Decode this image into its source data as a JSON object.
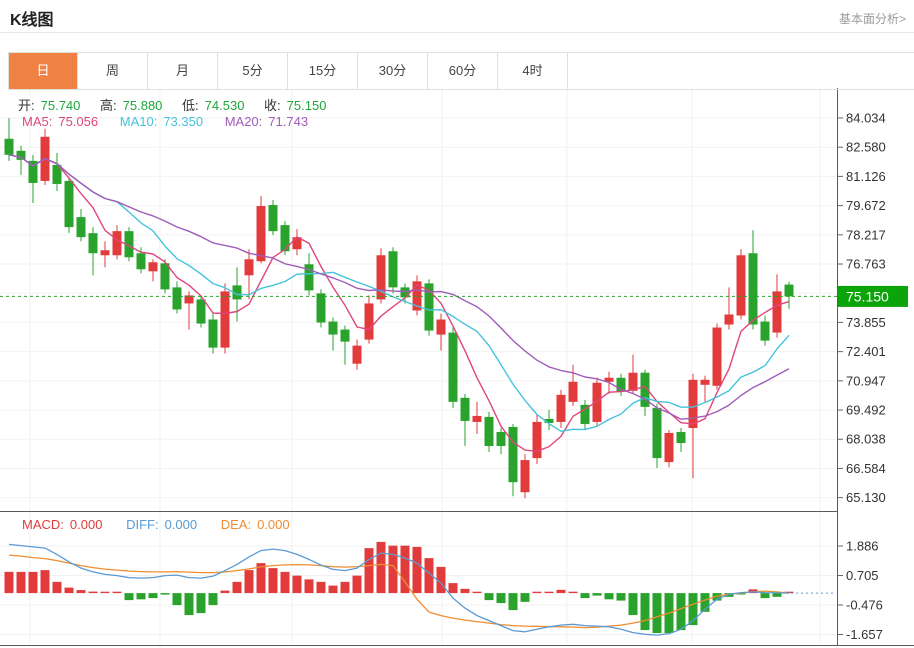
{
  "header": {
    "title": "K线图",
    "link_label": "基本面分析>"
  },
  "tabs": {
    "items": [
      "日",
      "周",
      "月",
      "5分",
      "15分",
      "30分",
      "60分",
      "4时"
    ],
    "active_index": 0
  },
  "info_bar": {
    "open_label": "开:",
    "open": "75.740",
    "high_label": "高:",
    "high": "75.880",
    "low_label": "低:",
    "low": "74.530",
    "close_label": "收:",
    "close": "75.150"
  },
  "ma_bar": {
    "ma5_label": "MA5:",
    "ma5": "75.056",
    "ma10_label": "MA10:",
    "ma10": "73.350",
    "ma20_label": "MA20:",
    "ma20": "71.743"
  },
  "macd_bar": {
    "macd_label": "MACD:",
    "macd": "0.000",
    "diff_label": "DIFF:",
    "diff": "0.000",
    "dea_label": "DEA:",
    "dea": "0.000"
  },
  "colors": {
    "red_up": "#e23b3c",
    "green_down": "#2aa32d",
    "badge_green": "#0ba50b",
    "ohlc_green": "#1fa63c",
    "ma5": "#e0457e",
    "ma10": "#45c3dc",
    "ma20": "#a05cb8",
    "diff": "#5a9bd4",
    "dea": "#f08c32",
    "tab_active": "#f08145",
    "price_line": "#2aa32d"
  },
  "chart_data": {
    "type": "candlestick+macd",
    "title": "K线图 daily candlestick with MACD",
    "legend": [
      "MA5",
      "MA10",
      "MA20",
      "MACD",
      "DIFF",
      "DEA"
    ],
    "grid": true,
    "current_price": 75.15,
    "current_price_label": "75.150",
    "price_axis_labels": [
      "84.034",
      "82.580",
      "81.126",
      "79.672",
      "78.217",
      "76.763",
      "73.855",
      "72.401",
      "70.947",
      "69.492",
      "68.038",
      "66.584",
      "65.130"
    ],
    "price_grid": [
      84.034,
      82.58,
      81.126,
      79.672,
      78.217,
      76.763,
      75.309,
      73.855,
      72.401,
      70.947,
      69.492,
      68.038,
      66.584,
      65.13
    ],
    "macd_axis_labels": [
      "1.886",
      "0.705",
      "-0.476",
      "-1.657"
    ],
    "macd_axis_ticks": [
      1.886,
      0.705,
      -0.476,
      -1.657
    ],
    "candles_format": "[open, high, low, close]",
    "candles": [
      [
        83.0,
        84.03,
        81.9,
        82.2
      ],
      [
        82.4,
        82.65,
        81.2,
        81.95
      ],
      [
        81.9,
        82.2,
        79.8,
        80.8
      ],
      [
        80.9,
        83.5,
        80.7,
        83.1
      ],
      [
        81.7,
        82.3,
        80.4,
        80.75
      ],
      [
        80.9,
        81.1,
        78.3,
        78.6
      ],
      [
        79.1,
        79.5,
        77.9,
        78.1
      ],
      [
        78.3,
        78.6,
        76.2,
        77.3
      ],
      [
        77.2,
        77.9,
        76.6,
        77.45
      ],
      [
        77.2,
        78.7,
        77.0,
        78.4
      ],
      [
        78.4,
        78.6,
        76.9,
        77.1
      ],
      [
        77.3,
        77.6,
        76.3,
        76.5
      ],
      [
        76.4,
        77.0,
        75.9,
        76.85
      ],
      [
        76.8,
        77.0,
        75.3,
        75.5
      ],
      [
        75.6,
        75.9,
        74.3,
        74.5
      ],
      [
        74.8,
        75.4,
        73.5,
        75.2
      ],
      [
        75.0,
        75.2,
        73.6,
        73.8
      ],
      [
        74.0,
        74.3,
        72.3,
        72.6
      ],
      [
        72.6,
        75.8,
        72.3,
        75.4
      ],
      [
        75.7,
        76.6,
        73.9,
        75.0
      ],
      [
        76.2,
        77.5,
        75.0,
        77.0
      ],
      [
        76.9,
        80.15,
        76.8,
        79.65
      ],
      [
        79.7,
        79.95,
        78.2,
        78.4
      ],
      [
        78.7,
        78.9,
        77.2,
        77.4
      ],
      [
        77.5,
        78.5,
        77.2,
        78.1
      ],
      [
        76.75,
        77.3,
        75.2,
        75.45
      ],
      [
        75.3,
        75.5,
        73.6,
        73.85
      ],
      [
        73.9,
        74.1,
        72.45,
        73.25
      ],
      [
        73.5,
        73.7,
        71.75,
        72.9
      ],
      [
        71.8,
        73.0,
        71.5,
        72.7
      ],
      [
        73.0,
        75.2,
        72.8,
        74.8
      ],
      [
        75.0,
        77.55,
        74.8,
        77.2
      ],
      [
        77.4,
        77.6,
        75.3,
        75.6
      ],
      [
        75.6,
        75.8,
        74.8,
        75.1
      ],
      [
        74.45,
        76.2,
        74.2,
        75.9
      ],
      [
        75.8,
        76.0,
        73.2,
        73.45
      ],
      [
        73.25,
        74.3,
        72.45,
        74.0
      ],
      [
        73.35,
        73.6,
        69.6,
        69.9
      ],
      [
        70.1,
        70.3,
        67.7,
        68.95
      ],
      [
        68.9,
        69.9,
        68.3,
        69.2
      ],
      [
        69.15,
        69.4,
        67.4,
        67.7
      ],
      [
        68.4,
        68.6,
        67.3,
        67.7
      ],
      [
        68.65,
        68.8,
        65.2,
        65.9
      ],
      [
        65.4,
        67.3,
        65.1,
        67.0
      ],
      [
        67.1,
        69.3,
        66.8,
        68.9
      ],
      [
        69.05,
        69.5,
        68.5,
        68.85
      ],
      [
        68.9,
        70.5,
        68.6,
        70.25
      ],
      [
        69.9,
        71.75,
        69.7,
        70.9
      ],
      [
        69.75,
        70.0,
        68.5,
        68.8
      ],
      [
        68.9,
        71.1,
        68.7,
        70.85
      ],
      [
        70.9,
        71.4,
        70.3,
        71.1
      ],
      [
        71.1,
        71.3,
        70.2,
        70.4
      ],
      [
        70.45,
        72.25,
        70.3,
        71.35
      ],
      [
        71.35,
        71.5,
        69.2,
        69.65
      ],
      [
        69.6,
        69.8,
        66.6,
        67.1
      ],
      [
        66.9,
        68.5,
        66.65,
        68.35
      ],
      [
        68.4,
        68.6,
        67.4,
        67.85
      ],
      [
        68.6,
        71.3,
        66.1,
        71.0
      ],
      [
        70.75,
        71.2,
        69.9,
        71.0
      ],
      [
        70.7,
        73.8,
        70.5,
        73.6
      ],
      [
        73.75,
        75.6,
        73.5,
        74.25
      ],
      [
        74.2,
        77.5,
        74.0,
        77.2
      ],
      [
        77.3,
        78.45,
        73.5,
        73.75
      ],
      [
        73.9,
        74.2,
        72.7,
        72.95
      ],
      [
        73.35,
        76.25,
        73.1,
        75.4
      ],
      [
        75.74,
        75.88,
        74.53,
        75.15
      ]
    ],
    "ma_periods": [
      5,
      10,
      20
    ],
    "macd": {
      "hist": [
        0.85,
        0.85,
        0.85,
        0.92,
        0.45,
        0.22,
        0.12,
        0.06,
        0.05,
        0.04,
        -0.28,
        -0.25,
        -0.2,
        -0.06,
        -0.48,
        -0.88,
        -0.8,
        -0.48,
        0.1,
        0.45,
        0.92,
        1.2,
        1.0,
        0.85,
        0.7,
        0.55,
        0.45,
        0.3,
        0.45,
        0.7,
        1.8,
        2.05,
        1.9,
        1.9,
        1.85,
        1.4,
        1.05,
        0.4,
        0.17,
        0.02,
        -0.28,
        -0.4,
        -0.68,
        -0.35,
        0.02,
        0.05,
        0.13,
        0.05,
        -0.2,
        -0.1,
        -0.25,
        -0.3,
        -0.88,
        -1.48,
        -1.6,
        -1.6,
        -1.48,
        -1.28,
        -0.75,
        -0.3,
        -0.15,
        -0.02,
        0.15,
        -0.2,
        -0.15,
        0.02
      ],
      "diff": [
        1.95,
        1.9,
        1.85,
        1.8,
        1.55,
        1.25,
        1.0,
        0.85,
        0.75,
        0.7,
        0.62,
        0.6,
        0.62,
        0.7,
        0.72,
        0.62,
        0.6,
        0.68,
        0.9,
        1.15,
        1.45,
        1.7,
        1.76,
        1.7,
        1.55,
        1.35,
        1.12,
        0.95,
        0.9,
        1.0,
        1.35,
        1.6,
        1.55,
        1.4,
        1.2,
        0.8,
        0.4,
        -0.2,
        -0.6,
        -0.9,
        -1.1,
        -1.3,
        -1.5,
        -1.55,
        -1.45,
        -1.35,
        -1.28,
        -1.25,
        -1.3,
        -1.32,
        -1.35,
        -1.45,
        -1.58,
        -1.65,
        -1.68,
        -1.62,
        -1.45,
        -1.1,
        -0.65,
        -0.25,
        -0.05,
        0.02,
        0.05,
        0.02,
        0.01,
        0.0
      ],
      "dea": [
        1.52,
        1.48,
        1.42,
        1.38,
        1.3,
        1.2,
        1.1,
        1.02,
        0.96,
        0.92,
        0.88,
        0.86,
        0.85,
        0.85,
        0.86,
        0.84,
        0.82,
        0.82,
        0.85,
        0.9,
        0.97,
        1.05,
        1.1,
        1.13,
        1.14,
        1.13,
        1.1,
        1.06,
        1.04,
        1.06,
        1.1,
        1.15,
        1.1,
        0.45,
        -0.25,
        -0.76,
        -0.9,
        -1.0,
        -1.08,
        -1.14,
        -1.2,
        -1.26,
        -1.3,
        -1.32,
        -1.33,
        -1.34,
        -1.35,
        -1.36,
        -1.38,
        -1.36,
        -1.32,
        -1.28,
        -1.2,
        -1.1,
        -0.95,
        -0.8,
        -0.62,
        -0.45,
        -0.28,
        -0.12,
        -0.04,
        0.0,
        0.05,
        0.08,
        0.05,
        0.0
      ]
    }
  }
}
